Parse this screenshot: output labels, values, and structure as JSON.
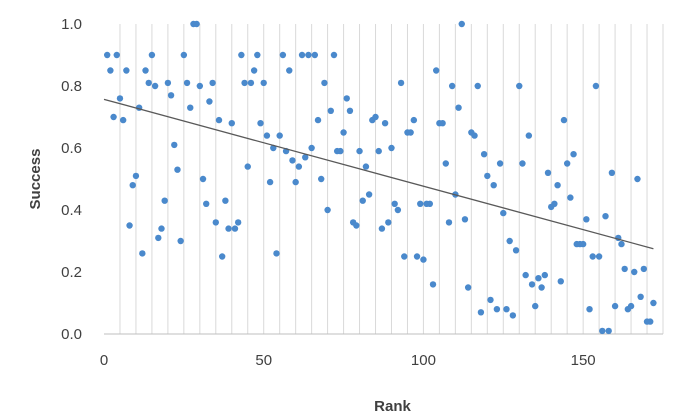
{
  "chart_data": {
    "type": "scatter",
    "xlabel": "Rank",
    "ylabel": "Success",
    "xlim": [
      0,
      175
    ],
    "ylim": [
      0,
      1.0
    ],
    "x_ticks": [
      0,
      50,
      100,
      150
    ],
    "x_tick_labels": [
      "0",
      "50",
      "100",
      "150"
    ],
    "y_ticks": [
      0,
      0.2,
      0.4,
      0.6,
      0.8,
      1.0
    ],
    "y_tick_labels": [
      "0.0",
      "0.2",
      "0.4",
      "0.6",
      "0.8",
      "1.0"
    ],
    "grid": {
      "vertical": true,
      "horizontal": false
    },
    "vertical_grid_step": 5,
    "legend": "none",
    "point_color": "#4a89cc",
    "trendline_color": "#595959",
    "trendline": {
      "x": [
        0,
        172
      ],
      "y": [
        0.757,
        0.275
      ]
    },
    "series": [
      {
        "points": [
          [
            1,
            0.9
          ],
          [
            2,
            0.85
          ],
          [
            3,
            0.7
          ],
          [
            4,
            0.9
          ],
          [
            5,
            0.76
          ],
          [
            6,
            0.69
          ],
          [
            7,
            0.85
          ],
          [
            8,
            0.35
          ],
          [
            9,
            0.48
          ],
          [
            10,
            0.51
          ],
          [
            11,
            0.73
          ],
          [
            12,
            0.26
          ],
          [
            13,
            0.85
          ],
          [
            14,
            0.81
          ],
          [
            15,
            0.9
          ],
          [
            16,
            0.8
          ],
          [
            17,
            0.31
          ],
          [
            18,
            0.34
          ],
          [
            19,
            0.43
          ],
          [
            20,
            0.81
          ],
          [
            21,
            0.77
          ],
          [
            22,
            0.61
          ],
          [
            23,
            0.53
          ],
          [
            24,
            0.3
          ],
          [
            25,
            0.9
          ],
          [
            26,
            0.81
          ],
          [
            27,
            0.73
          ],
          [
            28,
            1.0
          ],
          [
            29,
            1.0
          ],
          [
            30,
            0.8
          ],
          [
            31,
            0.5
          ],
          [
            32,
            0.42
          ],
          [
            33,
            0.75
          ],
          [
            34,
            0.81
          ],
          [
            35,
            0.36
          ],
          [
            36,
            0.69
          ],
          [
            37,
            0.25
          ],
          [
            38,
            0.43
          ],
          [
            39,
            0.34
          ],
          [
            40,
            0.68
          ],
          [
            41,
            0.34
          ],
          [
            42,
            0.36
          ],
          [
            43,
            0.9
          ],
          [
            44,
            0.81
          ],
          [
            45,
            0.54
          ],
          [
            46,
            0.81
          ],
          [
            47,
            0.85
          ],
          [
            48,
            0.9
          ],
          [
            49,
            0.68
          ],
          [
            50,
            0.81
          ],
          [
            51,
            0.64
          ],
          [
            52,
            0.49
          ],
          [
            53,
            0.6
          ],
          [
            54,
            0.26
          ],
          [
            55,
            0.64
          ],
          [
            56,
            0.9
          ],
          [
            57,
            0.59
          ],
          [
            58,
            0.85
          ],
          [
            59,
            0.56
          ],
          [
            60,
            0.49
          ],
          [
            61,
            0.54
          ],
          [
            62,
            0.9
          ],
          [
            63,
            0.57
          ],
          [
            64,
            0.9
          ],
          [
            65,
            0.6
          ],
          [
            66,
            0.9
          ],
          [
            67,
            0.69
          ],
          [
            68,
            0.5
          ],
          [
            69,
            0.81
          ],
          [
            70,
            0.4
          ],
          [
            71,
            0.72
          ],
          [
            72,
            0.9
          ],
          [
            73,
            0.59
          ],
          [
            74,
            0.59
          ],
          [
            75,
            0.65
          ],
          [
            76,
            0.76
          ],
          [
            77,
            0.72
          ],
          [
            78,
            0.36
          ],
          [
            79,
            0.35
          ],
          [
            80,
            0.59
          ],
          [
            81,
            0.43
          ],
          [
            82,
            0.54
          ],
          [
            83,
            0.45
          ],
          [
            84,
            0.69
          ],
          [
            85,
            0.7
          ],
          [
            86,
            0.59
          ],
          [
            87,
            0.34
          ],
          [
            88,
            0.68
          ],
          [
            89,
            0.36
          ],
          [
            90,
            0.6
          ],
          [
            91,
            0.42
          ],
          [
            92,
            0.4
          ],
          [
            93,
            0.81
          ],
          [
            94,
            0.25
          ],
          [
            95,
            0.65
          ],
          [
            96,
            0.65
          ],
          [
            97,
            0.69
          ],
          [
            98,
            0.25
          ],
          [
            99,
            0.42
          ],
          [
            100,
            0.24
          ],
          [
            101,
            0.42
          ],
          [
            102,
            0.42
          ],
          [
            103,
            0.16
          ],
          [
            104,
            0.85
          ],
          [
            105,
            0.68
          ],
          [
            106,
            0.68
          ],
          [
            107,
            0.55
          ],
          [
            108,
            0.36
          ],
          [
            109,
            0.8
          ],
          [
            110,
            0.45
          ],
          [
            111,
            0.73
          ],
          [
            112,
            1.0
          ],
          [
            113,
            0.37
          ],
          [
            114,
            0.15
          ],
          [
            115,
            0.65
          ],
          [
            116,
            0.64
          ],
          [
            117,
            0.8
          ],
          [
            118,
            0.07
          ],
          [
            119,
            0.58
          ],
          [
            120,
            0.51
          ],
          [
            121,
            0.11
          ],
          [
            122,
            0.48
          ],
          [
            123,
            0.08
          ],
          [
            124,
            0.55
          ],
          [
            125,
            0.39
          ],
          [
            126,
            0.08
          ],
          [
            127,
            0.3
          ],
          [
            128,
            0.06
          ],
          [
            129,
            0.27
          ],
          [
            130,
            0.8
          ],
          [
            131,
            0.55
          ],
          [
            132,
            0.19
          ],
          [
            133,
            0.64
          ],
          [
            134,
            0.16
          ],
          [
            135,
            0.09
          ],
          [
            136,
            0.18
          ],
          [
            137,
            0.15
          ],
          [
            138,
            0.19
          ],
          [
            139,
            0.52
          ],
          [
            140,
            0.41
          ],
          [
            141,
            0.42
          ],
          [
            142,
            0.48
          ],
          [
            143,
            0.17
          ],
          [
            144,
            0.69
          ],
          [
            145,
            0.55
          ],
          [
            146,
            0.44
          ],
          [
            147,
            0.58
          ],
          [
            148,
            0.29
          ],
          [
            149,
            0.29
          ],
          [
            150,
            0.29
          ],
          [
            151,
            0.37
          ],
          [
            152,
            0.08
          ],
          [
            153,
            0.25
          ],
          [
            154,
            0.8
          ],
          [
            155,
            0.25
          ],
          [
            156,
            0.01
          ],
          [
            157,
            0.38
          ],
          [
            158,
            0.01
          ],
          [
            159,
            0.52
          ],
          [
            160,
            0.09
          ],
          [
            161,
            0.31
          ],
          [
            162,
            0.29
          ],
          [
            163,
            0.21
          ],
          [
            164,
            0.08
          ],
          [
            165,
            0.09
          ],
          [
            166,
            0.2
          ],
          [
            167,
            0.5
          ],
          [
            168,
            0.12
          ],
          [
            169,
            0.21
          ],
          [
            170,
            0.04
          ],
          [
            171,
            0.04
          ],
          [
            172,
            0.1
          ]
        ]
      }
    ]
  }
}
